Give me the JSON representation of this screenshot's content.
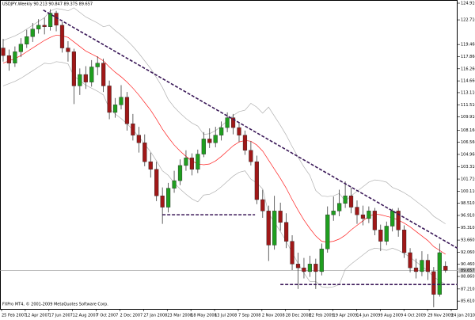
{
  "chart_data": {
    "type": "candlestick",
    "title": "USDJPY,Weekly  90.213 90.847 89.375 89.657",
    "footer": "FXPro MT4, © 2001-2009 MetaQuotes Software Corp.",
    "xtick_labels": [
      "25 Feb 2007",
      "12 Apr 2007",
      "17 Jun 2007",
      "12 Aug 2007",
      "7 Oct 2007",
      "2 Dec 2007",
      "27 Jan 2008",
      "23 Mar 2008",
      "18 May 2008",
      "13 Jul 2008",
      "7 Sep 2008",
      "2 Nov 2008",
      "28 Dec 2008",
      "22 Feb 2009",
      "19 Apr 2009",
      "14 Jun 2009",
      "9 Aug 2009",
      "4 Oct 2009",
      "29 Nov 2009",
      "24 Jan 2010"
    ],
    "ylim": [
      84.58,
      125.33
    ],
    "yticks": [
      {
        "value": 124.91,
        "label": "124.910"
      },
      {
        "value": 122.71,
        "label": "122.710"
      },
      {
        "value": 119.46,
        "label": "119.460"
      },
      {
        "value": 117.86,
        "label": "117.860"
      },
      {
        "value": 116.26,
        "label": "116.260"
      },
      {
        "value": 114.66,
        "label": "114.660"
      },
      {
        "value": 113.11,
        "label": "113.110"
      },
      {
        "value": 111.51,
        "label": "111.510"
      },
      {
        "value": 109.91,
        "label": "109.910"
      },
      {
        "value": 108.16,
        "label": "108.160"
      },
      {
        "value": 106.56,
        "label": "106.560"
      },
      {
        "value": 104.96,
        "label": "104.960"
      },
      {
        "value": 103.31,
        "label": "103.310"
      },
      {
        "value": 101.71,
        "label": "101.710"
      },
      {
        "value": 100.11,
        "label": "100.110"
      },
      {
        "value": 98.51,
        "label": "98.510"
      },
      {
        "value": 96.91,
        "label": "96.910"
      },
      {
        "value": 95.31,
        "label": "95.310"
      },
      {
        "value": 93.66,
        "label": "93.660"
      },
      {
        "value": 92.06,
        "label": "92.060"
      },
      {
        "value": 90.46,
        "label": "90.460"
      },
      {
        "value": 88.86,
        "label": "88.860"
      },
      {
        "value": 87.21,
        "label": "87.210"
      },
      {
        "value": 85.61,
        "label": "85.610"
      }
    ],
    "up_color": "#1f9e1f",
    "down_color": "#a01818",
    "wick_color": "#222222",
    "open": [
      119.0,
      118.0,
      117.0,
      118.5,
      119.5,
      120.5,
      121.5,
      122.0,
      121.8,
      123.6,
      122.0,
      119.0,
      118.5,
      114.0,
      115.5,
      114.5,
      116.5,
      117.0,
      114.0,
      110.5,
      111.5,
      112.5,
      109.0,
      107.5,
      106.5,
      104.0,
      103.0,
      99.5,
      98.0,
      100.5,
      101.5,
      103.5,
      104.5,
      103.0,
      105.0,
      107.0,
      106.5,
      107.5,
      108.5,
      109.8,
      108.5,
      107.5,
      105.5,
      104.0,
      99.0,
      97.5,
      93.0,
      97.5,
      96.0,
      93.5,
      90.5,
      90.0,
      89.5,
      90.5,
      89.5,
      92.5,
      97.0,
      97.5,
      98.5,
      99.5,
      98.0,
      97.0,
      96.5,
      97.5,
      95.0,
      93.5,
      95.5,
      97.5,
      95.0,
      92.0,
      90.0,
      89.5,
      91.0,
      89.5,
      86.5,
      90.213
    ],
    "high": [
      120.2,
      118.8,
      119.2,
      120.3,
      121.4,
      122.3,
      122.8,
      123.0,
      124.1,
      123.9,
      122.4,
      119.9,
      118.9,
      116.3,
      116.6,
      117.4,
      117.9,
      117.6,
      114.7,
      112.4,
      114.1,
      113.2,
      110.3,
      108.6,
      107.6,
      105.2,
      104.0,
      100.6,
      101.2,
      102.8,
      104.3,
      105.5,
      105.1,
      105.6,
      107.9,
      108.4,
      108.6,
      109.3,
      110.5,
      110.3,
      109.2,
      108.1,
      106.7,
      104.8,
      100.3,
      98.2,
      99.5,
      98.6,
      97.2,
      94.3,
      92.0,
      91.3,
      91.6,
      91.2,
      93.2,
      98.1,
      99.4,
      100.3,
      101.4,
      100.6,
      98.9,
      98.2,
      98.1,
      97.9,
      95.7,
      96.1,
      97.8,
      97.9,
      95.6,
      92.6,
      91.2,
      92.2,
      91.8,
      90.1,
      93.2,
      90.847
    ],
    "low": [
      117.2,
      116.0,
      116.5,
      117.8,
      119.0,
      119.8,
      120.9,
      120.8,
      121.3,
      121.2,
      118.4,
      117.2,
      111.6,
      112.8,
      113.6,
      113.9,
      115.4,
      113.2,
      109.6,
      109.8,
      110.9,
      108.1,
      106.8,
      105.2,
      103.4,
      101.9,
      98.8,
      95.8,
      97.3,
      99.9,
      100.9,
      102.8,
      102.2,
      102.5,
      104.6,
      105.8,
      105.9,
      106.8,
      107.9,
      107.6,
      106.6,
      104.9,
      103.5,
      98.4,
      96.6,
      90.9,
      92.4,
      94.9,
      92.6,
      89.7,
      87.2,
      88.6,
      88.8,
      87.2,
      89.0,
      92.0,
      96.2,
      96.8,
      97.9,
      97.2,
      95.8,
      95.6,
      95.9,
      94.3,
      92.2,
      93.0,
      94.8,
      94.1,
      91.3,
      89.4,
      88.6,
      88.9,
      88.4,
      84.8,
      86.2,
      89.375
    ],
    "close": [
      118.0,
      117.0,
      118.5,
      119.5,
      120.5,
      121.5,
      122.0,
      121.8,
      123.6,
      122.0,
      119.0,
      118.5,
      114.0,
      115.5,
      114.5,
      116.5,
      117.0,
      114.0,
      110.5,
      111.5,
      112.5,
      109.0,
      107.5,
      106.5,
      104.0,
      103.0,
      99.5,
      98.0,
      100.5,
      101.5,
      103.5,
      104.5,
      103.0,
      105.0,
      107.0,
      106.5,
      107.5,
      108.5,
      109.8,
      108.5,
      107.5,
      105.5,
      104.0,
      99.0,
      97.5,
      93.0,
      97.5,
      96.0,
      93.5,
      90.5,
      90.0,
      89.5,
      90.5,
      89.5,
      92.5,
      97.0,
      97.5,
      98.5,
      99.5,
      98.0,
      97.0,
      96.5,
      97.5,
      95.0,
      93.5,
      95.5,
      97.5,
      95.0,
      92.0,
      90.0,
      89.5,
      91.0,
      89.5,
      86.5,
      92.0,
      89.657
    ],
    "series": [
      {
        "color": "#ff2020",
        "values": [
          117,
          117.3,
          117.6,
          118,
          118.5,
          119,
          119.5,
          120,
          120.4,
          120.7,
          120.6,
          120.4,
          119.8,
          119.2,
          118.6,
          118.2,
          117.8,
          117.3,
          116.5,
          115.8,
          115.2,
          114.5,
          113.7,
          112.8,
          111.8,
          110.8,
          109.6,
          108.3,
          107.2,
          106.2,
          105.4,
          104.7,
          104.1,
          103.7,
          103.6,
          103.7,
          104.1,
          104.7,
          105.4,
          106.1,
          106.6,
          106.8,
          106.7,
          106.2,
          105.4,
          104.2,
          103.0,
          101.8,
          100.5,
          99.0,
          97.6,
          96.3,
          95.2,
          94.2,
          93.5,
          93.4,
          93.5,
          93.8,
          94.3,
          95.0,
          95.6,
          96.2,
          96.8,
          97.1,
          97.0,
          96.8,
          96.6,
          96.3,
          95.9,
          95.4,
          94.8,
          94.2,
          93.6,
          92.8,
          92.3,
          91.8
        ]
      },
      {
        "color": "#b0b0b0",
        "values": [
          120.0,
          120.3,
          120.6,
          121.0,
          121.5,
          122.0,
          122.5,
          123.0,
          123.9,
          124.2,
          124.1,
          123.9,
          124.3,
          123.7,
          123.1,
          122.7,
          122.3,
          121.8,
          122.0,
          121.3,
          120.7,
          120.0,
          119.2,
          118.3,
          117.3,
          116.3,
          115.1,
          113.8,
          112.2,
          111.2,
          110.4,
          109.7,
          109.1,
          108.7,
          107.6,
          107.7,
          108.1,
          108.7,
          109.4,
          110.1,
          110.6,
          110.8,
          111.7,
          111.2,
          110.4,
          111.2,
          110.0,
          108.8,
          107.5,
          106.0,
          104.6,
          103.3,
          102.2,
          100.2,
          99.5,
          99.4,
          99.5,
          99.8,
          98.8,
          99.5,
          100.1,
          100.7,
          101.3,
          101.6,
          101.5,
          101.3,
          100.6,
          100.3,
          99.9,
          99.4,
          98.8,
          98.2,
          97.6,
          96.8,
          96.3,
          95.8
        ]
      },
      {
        "color": "#b0b0b0",
        "values": [
          114.0,
          114.3,
          114.6,
          115.0,
          115.5,
          116.0,
          116.5,
          117.0,
          116.9,
          117.2,
          117.1,
          116.9,
          115.3,
          114.7,
          114.1,
          113.7,
          113.3,
          112.8,
          111.0,
          110.3,
          109.7,
          109.0,
          108.2,
          107.3,
          106.3,
          105.3,
          104.1,
          102.8,
          102.2,
          101.2,
          100.4,
          99.7,
          99.1,
          98.7,
          99.6,
          99.7,
          100.1,
          100.7,
          101.4,
          102.1,
          102.6,
          102.8,
          101.7,
          101.2,
          100.4,
          97.2,
          96.0,
          94.8,
          93.5,
          92.0,
          90.6,
          89.3,
          88.2,
          88.2,
          87.5,
          87.4,
          87.5,
          87.8,
          89.8,
          90.5,
          91.1,
          91.7,
          92.3,
          92.6,
          92.5,
          92.3,
          92.6,
          92.3,
          91.9,
          91.4,
          90.8,
          90.2,
          89.6,
          88.8,
          88.3,
          87.8
        ]
      }
    ],
    "lines": [
      {
        "color": "#3a1858",
        "from": [
          6.8,
          124.0
        ],
        "to": [
          77,
          92.6
        ]
      },
      {
        "color": "#3a1858",
        "from": [
          27,
          97.0
        ],
        "to": [
          42.7,
          97.0
        ]
      },
      {
        "color": "#3a1858",
        "from": [
          47,
          87.8
        ],
        "to": [
          77,
          87.8
        ]
      }
    ]
  }
}
